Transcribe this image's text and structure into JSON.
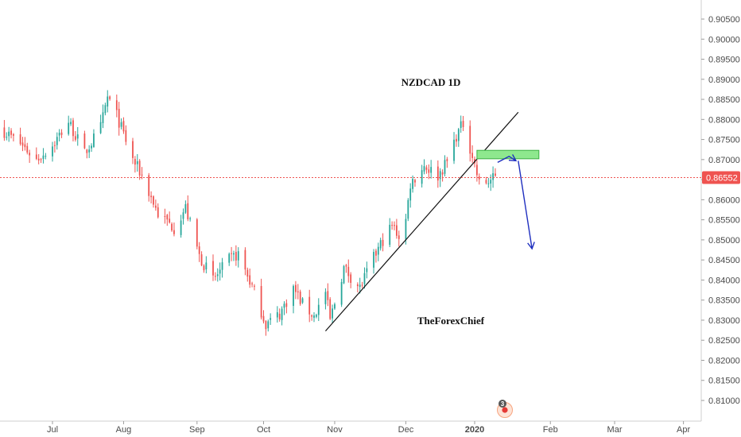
{
  "chart_data": {
    "type": "candlestick",
    "title": "NZDCAD 1D",
    "watermark": "TheForexChief",
    "y_ticks": [
      0.905,
      0.9,
      0.895,
      0.89,
      0.885,
      0.88,
      0.875,
      0.87,
      0.865,
      0.86,
      0.855,
      0.85,
      0.845,
      0.84,
      0.835,
      0.83,
      0.825,
      0.82,
      0.815,
      0.81
    ],
    "y_tick_labels": [
      "0.90500",
      "0.90000",
      "0.89500",
      "0.89000",
      "0.88500",
      "0.88000",
      "0.87500",
      "0.87000",
      "0.86500",
      "0.86000",
      "0.85500",
      "0.85000",
      "0.84500",
      "0.84000",
      "0.83500",
      "0.83000",
      "0.82500",
      "0.82000",
      "0.81500",
      "0.81000"
    ],
    "ylim": [
      0.8055,
      0.9075
    ],
    "x_ticks": [
      {
        "label": "Jul",
        "date": "2019-07-01"
      },
      {
        "label": "Aug",
        "date": "2019-08-01"
      },
      {
        "label": "Sep",
        "date": "2019-09-02"
      },
      {
        "label": "Oct",
        "date": "2019-10-01"
      },
      {
        "label": "Nov",
        "date": "2019-11-01"
      },
      {
        "label": "Dec",
        "date": "2019-12-02"
      },
      {
        "label": "2020",
        "date": "2020-01-01"
      },
      {
        "label": "Feb",
        "date": "2020-02-03"
      },
      {
        "label": "Mar",
        "date": "2020-03-02"
      },
      {
        "label": "Apr",
        "date": "2020-04-01"
      }
    ],
    "last_price": 0.86552,
    "last_price_label": "0.86552",
    "grid": false,
    "colors": {
      "up": "#26a69a",
      "down": "#ef5350",
      "last_price": "#ef5350",
      "zone_fill": "#8ee88e",
      "zone_border": "#3cb043",
      "arrow": "#1f2fbf",
      "trendline": "#111111"
    },
    "anchors": [
      [
        "2019-06-10",
        0.877
      ],
      [
        "2019-06-17",
        0.874
      ],
      [
        "2019-06-24",
        0.87
      ],
      [
        "2019-07-01",
        0.8735
      ],
      [
        "2019-07-08",
        0.8795
      ],
      [
        "2019-07-15",
        0.8715
      ],
      [
        "2019-07-22",
        0.878
      ],
      [
        "2019-07-25",
        0.8855
      ],
      [
        "2019-07-29",
        0.881
      ],
      [
        "2019-08-05",
        0.87
      ],
      [
        "2019-08-09",
        0.866
      ],
      [
        "2019-08-16",
        0.8565
      ],
      [
        "2019-08-23",
        0.853
      ],
      [
        "2019-08-28",
        0.858
      ],
      [
        "2019-09-03",
        0.846
      ],
      [
        "2019-09-09",
        0.84
      ],
      [
        "2019-09-16",
        0.845
      ],
      [
        "2019-09-20",
        0.8465
      ],
      [
        "2019-09-27",
        0.837
      ],
      [
        "2019-10-02",
        0.829
      ],
      [
        "2019-10-08",
        0.8315
      ],
      [
        "2019-10-14",
        0.838
      ],
      [
        "2019-10-18",
        0.834
      ],
      [
        "2019-10-23",
        0.831
      ],
      [
        "2019-10-28",
        0.837
      ],
      [
        "2019-10-30",
        0.83
      ],
      [
        "2019-11-05",
        0.843
      ],
      [
        "2019-11-12",
        0.838
      ],
      [
        "2019-11-18",
        0.8455
      ],
      [
        "2019-11-22",
        0.85
      ],
      [
        "2019-11-26",
        0.8535
      ],
      [
        "2019-11-29",
        0.851
      ],
      [
        "2019-12-02",
        0.855
      ],
      [
        "2019-12-04",
        0.864
      ],
      [
        "2019-12-10",
        0.8685
      ],
      [
        "2019-12-16",
        0.866
      ],
      [
        "2019-12-20",
        0.8695
      ],
      [
        "2019-12-24",
        0.876
      ],
      [
        "2019-12-27",
        0.879
      ],
      [
        "2019-12-31",
        0.871
      ],
      [
        "2020-01-03",
        0.864
      ],
      [
        "2020-01-07",
        0.8645
      ],
      [
        "2020-01-10",
        0.8655
      ]
    ],
    "annotations": [
      {
        "type": "trendline",
        "from": [
          "2019-10-28",
          0.8273
        ],
        "to": [
          "2020-01-20",
          0.8818
        ]
      },
      {
        "type": "resistance_zone",
        "from": [
          "2020-01-02",
          0.8702
        ],
        "to": [
          "2020-01-29",
          0.8723
        ]
      },
      {
        "type": "arrow",
        "points": [
          [
            "2020-01-11",
            0.8693
          ],
          [
            "2020-01-16",
            0.8708
          ],
          [
            "2020-01-19",
            0.8697
          ]
        ]
      },
      {
        "type": "arrow",
        "points": [
          [
            "2020-01-20",
            0.8697
          ],
          [
            "2020-01-26",
            0.8478
          ]
        ]
      }
    ]
  },
  "widgets": {
    "event_badge_count": "3",
    "icons": [
      "calendar-event-icon"
    ]
  }
}
